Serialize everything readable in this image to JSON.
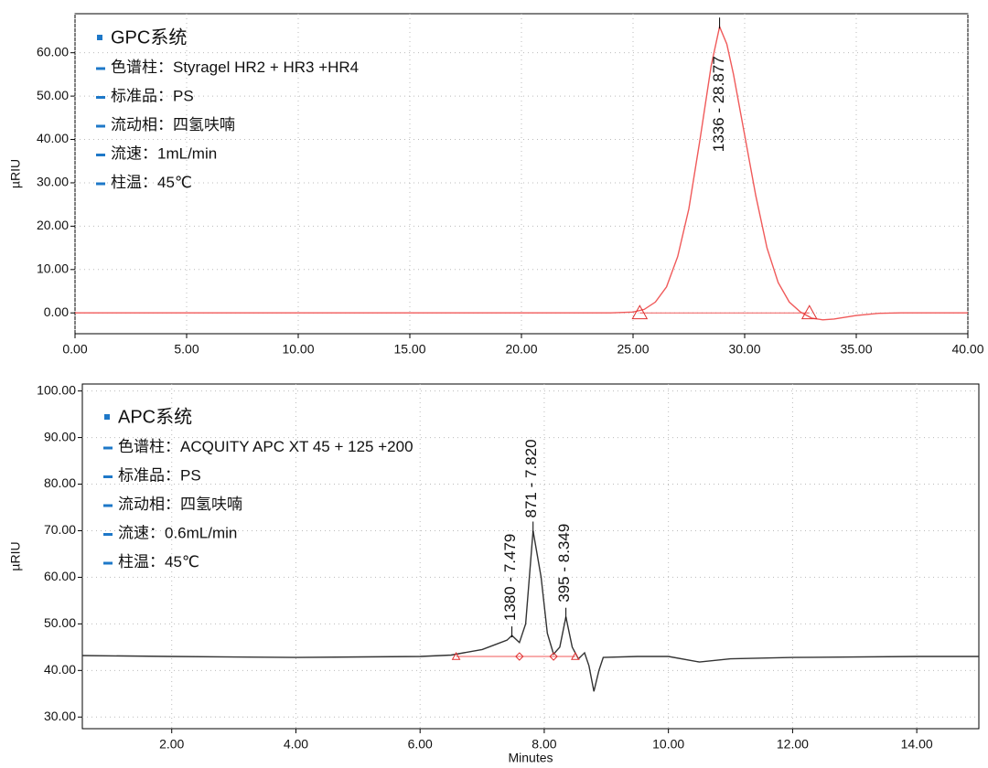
{
  "chart_data": [
    {
      "type": "line",
      "y_label": "µRIU",
      "color": "#f05a5a",
      "grid": true,
      "xlim": [
        0,
        40
      ],
      "ylim": [
        -4.8,
        69
      ],
      "xticks": [
        {
          "value": 0,
          "label": "0.00"
        },
        {
          "value": 5,
          "label": "5.00"
        },
        {
          "value": 10,
          "label": "10.00"
        },
        {
          "value": 15,
          "label": "15.00"
        },
        {
          "value": 20,
          "label": "20.00"
        },
        {
          "value": 25,
          "label": "25.00"
        },
        {
          "value": 30,
          "label": "30.00"
        },
        {
          "value": 35,
          "label": "35.00"
        },
        {
          "value": 40,
          "label": "40.00"
        }
      ],
      "yticks": [
        {
          "value": 0,
          "label": "0.00"
        },
        {
          "value": 10,
          "label": "10.00"
        },
        {
          "value": 20,
          "label": "20.00"
        },
        {
          "value": 30,
          "label": "30.00"
        },
        {
          "value": 40,
          "label": "40.00"
        },
        {
          "value": 50,
          "label": "50.00"
        },
        {
          "value": 60,
          "label": "60.00"
        }
      ],
      "annotations": [
        "GPC系统",
        "色谱柱：Styragel HR2 + HR3 +HR4",
        "标准品：PS",
        "流动相：四氢呋喃",
        "流速：1mL/min",
        "柱温：45℃"
      ],
      "x": [
        0,
        5,
        10,
        15,
        20,
        24,
        25,
        25.5,
        26,
        26.5,
        27,
        27.5,
        28,
        28.5,
        28.877,
        29.2,
        29.5,
        30,
        30.5,
        31,
        31.5,
        32,
        32.5,
        33,
        33.5,
        34,
        35,
        36,
        37,
        40
      ],
      "values": [
        0,
        0,
        0,
        0,
        0,
        0,
        0.2,
        0.8,
        2.5,
        6,
        13,
        24,
        40,
        57,
        66,
        62,
        55,
        41,
        27,
        15,
        7,
        2.5,
        0.2,
        -1.2,
        -1.6,
        -1.4,
        -0.6,
        -0.1,
        0,
        0
      ],
      "peak_labels": [
        {
          "x": 28.877,
          "y": 66,
          "label": "1336 - 28.877"
        }
      ],
      "integration_markers": [
        {
          "x": 25.3,
          "y": 0,
          "shape": "triangle"
        },
        {
          "x": 32.9,
          "y": 0,
          "shape": "triangle"
        }
      ]
    },
    {
      "type": "line",
      "y_label": "µRIU",
      "x_label": "Minutes",
      "color": "#333333",
      "grid": true,
      "xlim": [
        0.56,
        15
      ],
      "ylim": [
        27.5,
        101.5
      ],
      "xticks": [
        {
          "value": 2,
          "label": "2.00"
        },
        {
          "value": 4,
          "label": "4.00"
        },
        {
          "value": 6,
          "label": "6.00"
        },
        {
          "value": 8,
          "label": "8.00"
        },
        {
          "value": 10,
          "label": "10.00"
        },
        {
          "value": 12,
          "label": "12.00"
        },
        {
          "value": 14,
          "label": "14.00"
        }
      ],
      "yticks": [
        {
          "value": 30,
          "label": "30.00"
        },
        {
          "value": 40,
          "label": "40.00"
        },
        {
          "value": 50,
          "label": "50.00"
        },
        {
          "value": 60,
          "label": "60.00"
        },
        {
          "value": 70,
          "label": "70.00"
        },
        {
          "value": 80,
          "label": "80.00"
        },
        {
          "value": 90,
          "label": "90.00"
        },
        {
          "value": 100,
          "label": "100.00"
        }
      ],
      "annotations": [
        "APC系统",
        "色谱柱：ACQUITY APC XT 45 + 125 +200",
        "标准品：PS",
        "流动相：四氢呋喃",
        "流速：0.6mL/min",
        "柱温：45℃"
      ],
      "x": [
        0.56,
        2,
        4,
        6,
        6.5,
        7,
        7.2,
        7.4,
        7.479,
        7.6,
        7.7,
        7.82,
        7.95,
        8.05,
        8.15,
        8.25,
        8.349,
        8.45,
        8.55,
        8.65,
        8.72,
        8.8,
        8.88,
        8.95,
        9.5,
        10,
        10.5,
        11,
        12,
        14,
        15
      ],
      "values": [
        43.2,
        43,
        42.8,
        43,
        43.3,
        44.5,
        45.5,
        46.5,
        47.5,
        46,
        50,
        70,
        60,
        48,
        43.5,
        45,
        51.5,
        45,
        42.5,
        43.8,
        41,
        35.5,
        40,
        42.8,
        43,
        43,
        41.8,
        42.5,
        42.8,
        43,
        43
      ],
      "peak_labels": [
        {
          "x": 7.479,
          "y": 47.5,
          "label": "1380 - 7.479"
        },
        {
          "x": 7.82,
          "y": 70,
          "label": "871 - 7.820"
        },
        {
          "x": 8.349,
          "y": 51.5,
          "label": "395 - 8.349"
        }
      ],
      "integration_markers": [
        {
          "x": 6.58,
          "y": 43,
          "shape": "triangle"
        },
        {
          "x": 7.6,
          "y": 43,
          "shape": "diamond"
        },
        {
          "x": 8.15,
          "y": 43,
          "shape": "diamond"
        },
        {
          "x": 8.5,
          "y": 43,
          "shape": "triangle"
        }
      ]
    }
  ]
}
